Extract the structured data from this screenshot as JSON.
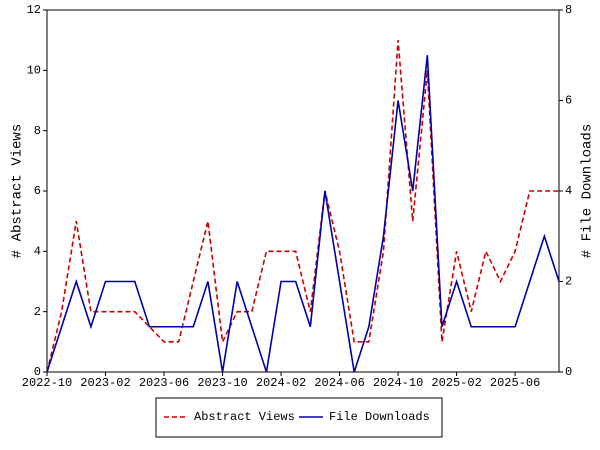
{
  "chart_data": {
    "type": "line",
    "categories": [
      "2022-10",
      null,
      null,
      null,
      "2023-02",
      null,
      null,
      null,
      "2023-06",
      null,
      null,
      null,
      "2023-10",
      null,
      null,
      null,
      "2024-02",
      null,
      null,
      null,
      "2024-06",
      null,
      null,
      null,
      "2024-10",
      null,
      null,
      null,
      "2025-02",
      null,
      null,
      null,
      "2025-06",
      null,
      null,
      null
    ],
    "y_label": "# Abstract Views",
    "y2_label": "# File Downloads",
    "ylim": [
      0,
      12
    ],
    "yticks": [
      0,
      2,
      4,
      6,
      8,
      10,
      12
    ],
    "y2lim": [
      0,
      8
    ],
    "y2ticks": [
      0,
      2,
      4,
      6,
      8
    ],
    "legend": "bottom",
    "series": [
      {
        "name": "Abstract Views",
        "color": "#cc0000",
        "dash": true,
        "values": [
          0,
          2,
          5,
          2,
          2,
          2,
          2,
          1.5,
          1,
          1,
          3,
          5,
          1,
          2,
          2,
          4,
          4,
          4,
          2,
          6,
          4,
          1,
          1,
          4,
          11,
          5,
          10,
          1,
          4,
          2,
          4,
          3,
          4,
          6,
          6,
          6
        ]
      },
      {
        "name": "File Downloads",
        "color": "#0000aa",
        "axis": "y2",
        "values": [
          0,
          1,
          2,
          1,
          2,
          2,
          2,
          1,
          1,
          1,
          1,
          2,
          0,
          2,
          1,
          0,
          2,
          2,
          1,
          4,
          2,
          0,
          1,
          3,
          6,
          4,
          7,
          1,
          2,
          1,
          1,
          1,
          1,
          2,
          3,
          2
        ]
      }
    ]
  }
}
